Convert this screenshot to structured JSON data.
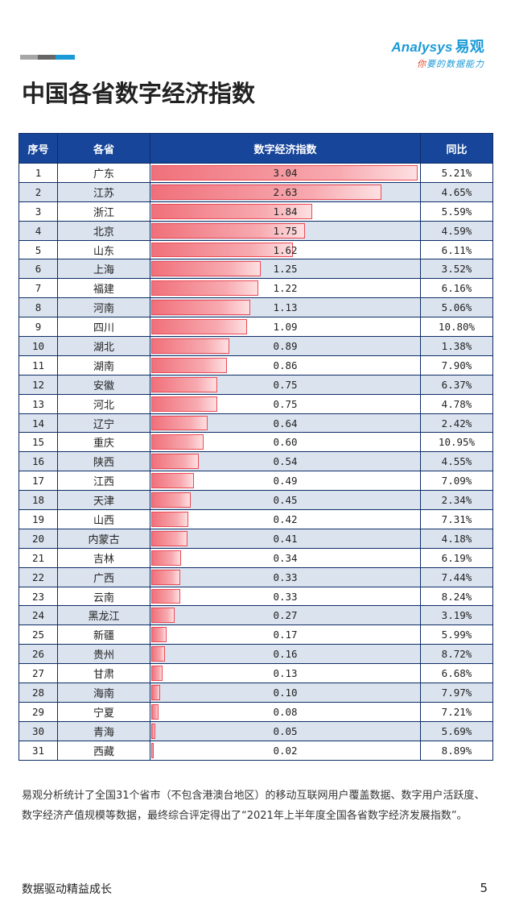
{
  "header": {
    "logo_brand": "Analysys",
    "logo_cn": "易观",
    "logo_tagline_hl": "你",
    "logo_tagline": "要的数据能力",
    "accent_colors": [
      "#a6a6a6",
      "#666666",
      "#1a9ad6"
    ]
  },
  "title": "中国各省数字经济指数",
  "table": {
    "headers": [
      "序号",
      "各省",
      "数字经济指数",
      "同比"
    ],
    "max_index": 3.04,
    "rows": [
      {
        "rank": "1",
        "province": "广东",
        "index": "3.04",
        "yoy": "5.21%"
      },
      {
        "rank": "2",
        "province": "江苏",
        "index": "2.63",
        "yoy": "4.65%"
      },
      {
        "rank": "3",
        "province": "浙江",
        "index": "1.84",
        "yoy": "5.59%"
      },
      {
        "rank": "4",
        "province": "北京",
        "index": "1.75",
        "yoy": "4.59%"
      },
      {
        "rank": "5",
        "province": "山东",
        "index": "1.62",
        "yoy": "6.11%"
      },
      {
        "rank": "6",
        "province": "上海",
        "index": "1.25",
        "yoy": "3.52%"
      },
      {
        "rank": "7",
        "province": "福建",
        "index": "1.22",
        "yoy": "6.16%"
      },
      {
        "rank": "8",
        "province": "河南",
        "index": "1.13",
        "yoy": "5.06%"
      },
      {
        "rank": "9",
        "province": "四川",
        "index": "1.09",
        "yoy": "10.80%"
      },
      {
        "rank": "10",
        "province": "湖北",
        "index": "0.89",
        "yoy": "1.38%"
      },
      {
        "rank": "11",
        "province": "湖南",
        "index": "0.86",
        "yoy": "7.90%"
      },
      {
        "rank": "12",
        "province": "安徽",
        "index": "0.75",
        "yoy": "6.37%"
      },
      {
        "rank": "13",
        "province": "河北",
        "index": "0.75",
        "yoy": "4.78%"
      },
      {
        "rank": "14",
        "province": "辽宁",
        "index": "0.64",
        "yoy": "2.42%"
      },
      {
        "rank": "15",
        "province": "重庆",
        "index": "0.60",
        "yoy": "10.95%"
      },
      {
        "rank": "16",
        "province": "陕西",
        "index": "0.54",
        "yoy": "4.55%"
      },
      {
        "rank": "17",
        "province": "江西",
        "index": "0.49",
        "yoy": "7.09%"
      },
      {
        "rank": "18",
        "province": "天津",
        "index": "0.45",
        "yoy": "2.34%"
      },
      {
        "rank": "19",
        "province": "山西",
        "index": "0.42",
        "yoy": "7.31%"
      },
      {
        "rank": "20",
        "province": "内蒙古",
        "index": "0.41",
        "yoy": "4.18%"
      },
      {
        "rank": "21",
        "province": "吉林",
        "index": "0.34",
        "yoy": "6.19%"
      },
      {
        "rank": "22",
        "province": "广西",
        "index": "0.33",
        "yoy": "7.44%"
      },
      {
        "rank": "23",
        "province": "云南",
        "index": "0.33",
        "yoy": "8.24%"
      },
      {
        "rank": "24",
        "province": "黑龙江",
        "index": "0.27",
        "yoy": "3.19%"
      },
      {
        "rank": "25",
        "province": "新疆",
        "index": "0.17",
        "yoy": "5.99%"
      },
      {
        "rank": "26",
        "province": "贵州",
        "index": "0.16",
        "yoy": "8.72%"
      },
      {
        "rank": "27",
        "province": "甘肃",
        "index": "0.13",
        "yoy": "6.68%"
      },
      {
        "rank": "28",
        "province": "海南",
        "index": "0.10",
        "yoy": "7.97%"
      },
      {
        "rank": "29",
        "province": "宁夏",
        "index": "0.08",
        "yoy": "7.21%"
      },
      {
        "rank": "30",
        "province": "青海",
        "index": "0.05",
        "yoy": "5.69%"
      },
      {
        "rank": "31",
        "province": "西藏",
        "index": "0.02",
        "yoy": "8.89%"
      }
    ]
  },
  "footnote": "易观分析统计了全国31个省市（不包含港澳台地区）的移动互联网用户覆盖数据、数字用户活跃度、数字经济产值规模等数据，最终综合评定得出了“2021年上半年度全国各省数字经济发展指数”。",
  "footer": {
    "slogan": "数据驱动精益成长",
    "page_number": "5"
  }
}
